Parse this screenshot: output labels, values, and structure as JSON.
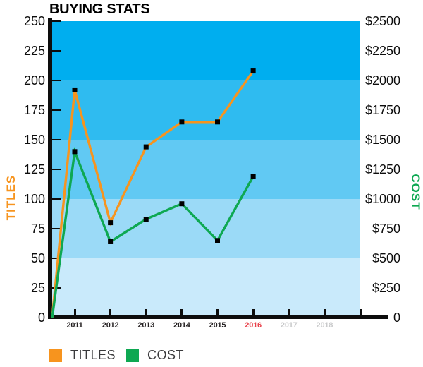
{
  "chart": {
    "title": "BUYING STATS"
  },
  "chart_data": {
    "type": "line",
    "title": "BUYING STATS",
    "categories": [
      "2011",
      "2012",
      "2013",
      "2014",
      "2015",
      "2016",
      "2017",
      "2018"
    ],
    "x_label_colors": [
      "#231F20",
      "#231F20",
      "#231F20",
      "#231F20",
      "#231F20",
      "#E8414A",
      "#C9CACB",
      "#C9CACB"
    ],
    "series": [
      {
        "name": "TITLES",
        "axis": "left",
        "color": "#F7941E",
        "starts_at_origin": true,
        "values": [
          192,
          80,
          144,
          165,
          165,
          208,
          null,
          null
        ]
      },
      {
        "name": "COST",
        "axis": "right",
        "color": "#0EA852",
        "starts_at_origin": true,
        "values": [
          1400,
          640,
          830,
          960,
          650,
          1190,
          null,
          null
        ]
      }
    ],
    "left_axis": {
      "label": "TITLES",
      "color": "#F7941E",
      "min": 0,
      "max": 250,
      "tick_step": 25,
      "tick_labels": [
        "0",
        "25",
        "50",
        "75",
        "100",
        "125",
        "150",
        "175",
        "200",
        "225",
        "250"
      ]
    },
    "right_axis": {
      "label": "COST",
      "color": "#0EA852",
      "min": 0,
      "max": 2500,
      "tick_step": 250,
      "tick_labels": [
        "0",
        "$250",
        "$500",
        "$750",
        "$1000",
        "$1250",
        "$1500",
        "$1750",
        "$2000",
        "$2250",
        "$2500"
      ]
    },
    "plot_bands": [
      {
        "from": 200,
        "to": 250,
        "color": "#00AEEF"
      },
      {
        "from": 150,
        "to": 200,
        "color": "#2FBBF0"
      },
      {
        "from": 100,
        "to": 150,
        "color": "#61C9F3"
      },
      {
        "from": 50,
        "to": 100,
        "color": "#9BDAF7"
      },
      {
        "from": 0,
        "to": 50,
        "color": "#C9EAFB"
      }
    ],
    "marker": {
      "shape": "square",
      "color": "#000000",
      "size": 7
    },
    "legend": [
      {
        "label": "TITLES",
        "color": "#F7941E"
      },
      {
        "label": "COST",
        "color": "#0EA852"
      }
    ],
    "grid": false,
    "legend_position": "bottom-left"
  }
}
